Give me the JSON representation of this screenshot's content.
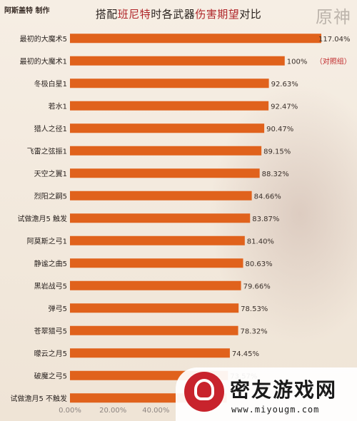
{
  "header": {
    "author": "阿斯盖特 制作",
    "title_parts": [
      "搭配",
      "班尼特",
      "时各武器",
      "伤害期望",
      "对比"
    ],
    "logo_text": "原神"
  },
  "chart_data": {
    "type": "bar",
    "orientation": "horizontal",
    "title": "搭配班尼特时各武器伤害期望对比",
    "bar_color": "#e0621c",
    "categories": [
      "最初的大魔术5",
      "最初的大魔术1",
      "冬极白星1",
      "若水1",
      "猎人之径1",
      "飞雷之弦振1",
      "天空之翼1",
      "烈阳之嗣5",
      "试做澹月5 触发",
      "阿莫斯之弓1",
      "静谧之曲5",
      "黑岩战弓5",
      "弹弓5",
      "苍翠猎弓5",
      "曚云之月5",
      "破魔之弓5",
      "试做澹月5 不触发"
    ],
    "values": [
      117.04,
      100,
      92.63,
      92.47,
      90.47,
      89.15,
      88.32,
      84.66,
      83.87,
      81.4,
      80.63,
      79.66,
      78.53,
      78.32,
      74.45,
      73.57,
      73.0
    ],
    "value_labels": [
      "117.04%",
      "100%",
      "92.63%",
      "92.47%",
      "90.47%",
      "89.15%",
      "88.32%",
      "84.66%",
      "83.87%",
      "81.40%",
      "80.63%",
      "79.66%",
      "78.53%",
      "78.32%",
      "74.45%",
      "73.57%",
      ""
    ],
    "notes": [
      "",
      "（对照组）",
      "",
      "",
      "",
      "",
      "",
      "",
      "",
      "",
      "",
      "",
      "",
      "",
      "",
      "",
      ""
    ],
    "x_ticks": [
      "0.00%",
      "20.00%",
      "40.00%"
    ],
    "xlim": [
      0,
      117.04
    ],
    "grid": false,
    "legend": "none"
  },
  "watermark": {
    "name": "密友游戏网",
    "url": "www.miyougm.com"
  }
}
